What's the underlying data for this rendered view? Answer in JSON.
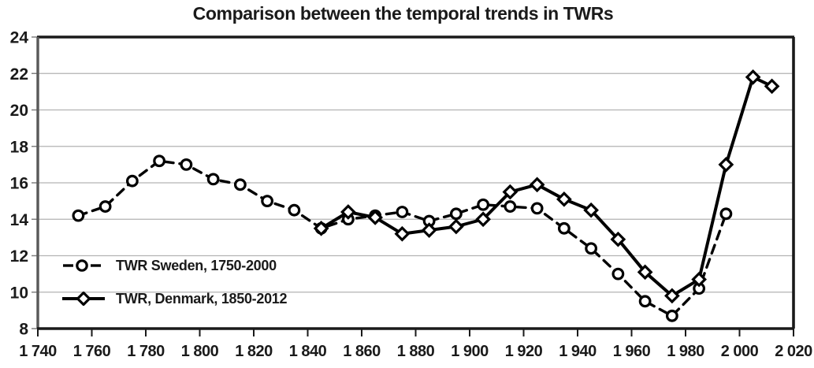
{
  "chart_data": {
    "type": "line",
    "title": "Comparison between the temporal trends in TWRs",
    "xlabel": "",
    "ylabel": "",
    "xlim": [
      1740,
      2020
    ],
    "ylim": [
      8,
      24
    ],
    "x_ticks": [
      1740,
      1760,
      1780,
      1800,
      1820,
      1840,
      1860,
      1880,
      1900,
      1920,
      1940,
      1960,
      1980,
      2000,
      2020
    ],
    "x_tick_labels": [
      "1 740",
      "1 760",
      "1 780",
      "1 800",
      "1 820",
      "1 840",
      "1 860",
      "1 880",
      "1 900",
      "1 920",
      "1 940",
      "1 960",
      "1 980",
      "2 000",
      "2 020"
    ],
    "y_ticks": [
      8,
      10,
      12,
      14,
      16,
      18,
      20,
      22,
      24
    ],
    "y_tick_labels": [
      "8",
      "10",
      "12",
      "14",
      "16",
      "18",
      "20",
      "22",
      "24"
    ],
    "grid": "horizontal gridlines on",
    "legend_position": "inside bottom-left, no border",
    "series": [
      {
        "name": "TWR Sweden, 1750-2000",
        "marker": "circle",
        "line_style": "dashed",
        "color": "#000000",
        "x": [
          1755,
          1765,
          1775,
          1785,
          1795,
          1805,
          1815,
          1825,
          1835,
          1845,
          1855,
          1865,
          1875,
          1885,
          1895,
          1905,
          1915,
          1925,
          1935,
          1945,
          1955,
          1965,
          1975,
          1985,
          1995
        ],
        "y": [
          14.2,
          14.7,
          16.1,
          17.2,
          17.0,
          16.2,
          15.9,
          15.0,
          14.5,
          13.5,
          14.0,
          14.2,
          14.4,
          13.9,
          14.3,
          14.8,
          14.7,
          14.6,
          13.5,
          12.4,
          11.0,
          9.5,
          8.7,
          10.2,
          14.3
        ]
      },
      {
        "name": "TWR, Denmark, 1850-2012",
        "marker": "diamond",
        "line_style": "solid",
        "color": "#000000",
        "x": [
          1845,
          1855,
          1865,
          1875,
          1885,
          1895,
          1905,
          1915,
          1925,
          1935,
          1945,
          1955,
          1965,
          1975,
          1985,
          1995,
          2005,
          2012
        ],
        "y": [
          13.5,
          14.4,
          14.1,
          13.2,
          13.4,
          13.6,
          14.0,
          15.5,
          15.9,
          15.1,
          14.5,
          12.9,
          11.1,
          9.8,
          10.7,
          17.0,
          21.8,
          21.3
        ]
      }
    ],
    "colors": {
      "line": "#000000",
      "marker_fill": "#ffffff",
      "gridline": "#b3b3b3",
      "left_axis": "#595959",
      "border": "#1a1a1a",
      "text": "#1a1a1a"
    }
  }
}
